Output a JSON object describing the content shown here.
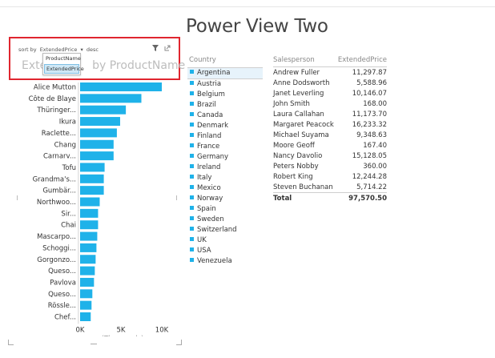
{
  "page_title": "Power View Two",
  "chart_tile": {
    "sort_label": "sort by",
    "sort_field": "ExtendedPrice",
    "sort_dir": "desc",
    "sort_options": [
      "ProductName",
      "ExtendedPrice"
    ],
    "title_start": "Exten",
    "title_end": "by ProductName",
    "filter_icon": "filter-icon",
    "popout_icon": "popout-icon"
  },
  "chart_data": {
    "type": "bar",
    "orientation": "horizontal",
    "categories": [
      "Alice Mutton",
      "Côte de Blaye",
      "Thüringer...",
      "Ikura",
      "Raclette...",
      "Chang",
      "Carnarv...",
      "Tofu",
      "Grandma's...",
      "Gumbär...",
      "Northwoo...",
      "Sir...",
      "Chai",
      "Mascarpo...",
      "Schoggi...",
      "Gorgonzo...",
      "Queso...",
      "Pavlova",
      "Queso...",
      "Rössle...",
      "Chef..."
    ],
    "values": [
      10000,
      7500,
      5600,
      4900,
      4500,
      4100,
      4100,
      3000,
      2900,
      2900,
      2400,
      2200,
      2200,
      2100,
      2000,
      1900,
      1800,
      1700,
      1500,
      1400,
      1300
    ],
    "xticks": [
      "0K",
      "5K",
      "10K"
    ],
    "xlim": [
      0,
      10000
    ],
    "xlabel": "(Thousands)",
    "bar_color": "#1fb2e9"
  },
  "slicer": {
    "header": "Country",
    "items": [
      {
        "label": "Argentina",
        "color": "#1fb2e9",
        "selected": true
      },
      {
        "label": "Austria",
        "color": "#1fb2e9"
      },
      {
        "label": "Belgium",
        "color": "#1fb2e9"
      },
      {
        "label": "Brazil",
        "color": "#1fb2e9"
      },
      {
        "label": "Canada",
        "color": "#1fb2e9"
      },
      {
        "label": "Denmark",
        "color": "#1fb2e9"
      },
      {
        "label": "Finland",
        "color": "#1fb2e9"
      },
      {
        "label": "France",
        "color": "#1fb2e9"
      },
      {
        "label": "Germany",
        "color": "#1fb2e9"
      },
      {
        "label": "Ireland",
        "color": "#1fb2e9"
      },
      {
        "label": "Italy",
        "color": "#1fb2e9"
      },
      {
        "label": "Mexico",
        "color": "#1fb2e9"
      },
      {
        "label": "Norway",
        "color": "#1fb2e9"
      },
      {
        "label": "Spain",
        "color": "#1fb2e9"
      },
      {
        "label": "Sweden",
        "color": "#1fb2e9"
      },
      {
        "label": "Switzerland",
        "color": "#1fb2e9"
      },
      {
        "label": "UK",
        "color": "#1fb2e9"
      },
      {
        "label": "USA",
        "color": "#1fb2e9"
      },
      {
        "label": "Venezuela",
        "color": "#1fb2e9"
      }
    ]
  },
  "table": {
    "headers": [
      "Salesperson",
      "ExtendedPrice"
    ],
    "rows": [
      [
        "Andrew Fuller",
        "11,297.87"
      ],
      [
        "Anne Dodsworth",
        "5,588.96"
      ],
      [
        "Janet Leverling",
        "10,146.07"
      ],
      [
        "John Smith",
        "168.00"
      ],
      [
        "Laura Callahan",
        "11,173.70"
      ],
      [
        "Margaret Peacock",
        "16,233.32"
      ],
      [
        "Michael Suyama",
        "9,348.63"
      ],
      [
        "Moore Geoff",
        "167.40"
      ],
      [
        "Nancy Davolio",
        "15,128.05"
      ],
      [
        "Peters Nobby",
        "360.00"
      ],
      [
        "Robert King",
        "12,244.28"
      ],
      [
        "Steven Buchanan",
        "5,714.22"
      ]
    ],
    "total": [
      "Total",
      "97,570.50"
    ]
  }
}
